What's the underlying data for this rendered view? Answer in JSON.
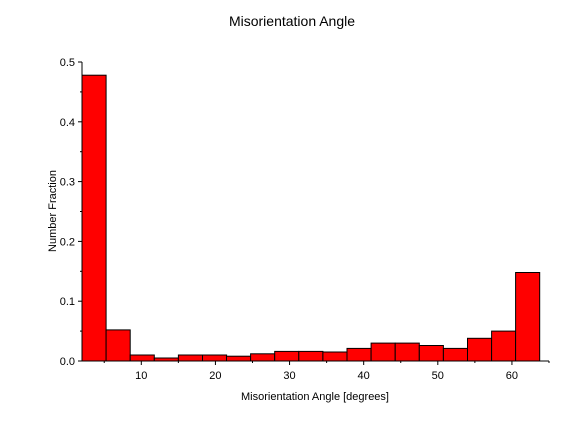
{
  "chart_data": {
    "type": "bar",
    "title": "Misorientation Angle",
    "xlabel": "Misorientation Angle [degrees]",
    "ylabel": "Number Fraction",
    "bin_edges": [
      2,
      5.25,
      8.5,
      11.75,
      15,
      18.25,
      21.5,
      24.75,
      28,
      31.25,
      34.5,
      37.75,
      41,
      44.25,
      47.5,
      50.75,
      54,
      57.25,
      60.5,
      63.75
    ],
    "values": [
      0.478,
      0.052,
      0.01,
      0.005,
      0.01,
      0.01,
      0.008,
      0.012,
      0.016,
      0.016,
      0.015,
      0.021,
      0.03,
      0.03,
      0.026,
      0.021,
      0.038,
      0.05,
      0.148
    ],
    "xlim": [
      2,
      65
    ],
    "ylim": [
      0,
      0.5
    ],
    "x_ticks": [
      10,
      20,
      30,
      40,
      50,
      60
    ],
    "y_ticks": [
      0.0,
      0.1,
      0.2,
      0.3,
      0.4,
      0.5
    ],
    "y_tick_labels": [
      "0.0",
      "0.1",
      "0.2",
      "0.3",
      "0.4",
      "0.5"
    ],
    "bar_color": "#ff0000",
    "grid": false,
    "legend": "none"
  }
}
